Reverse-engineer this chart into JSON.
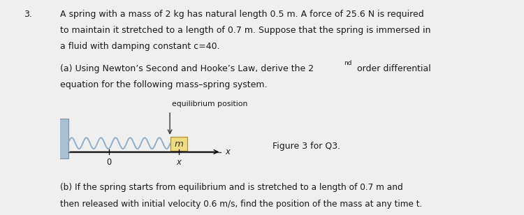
{
  "question_number": "3.",
  "main_text_line1": "A spring with a mass of 2 kg has natural length 0.5 m. A force of 25.6 N is required",
  "main_text_line2": "to maintain it stretched to a length of 0.7 m. Suppose that the spring is immersed in",
  "main_text_line3": "a fluid with damping constant c=40.",
  "part_a_line1": "(a) Using Newton’s Second and Hooke’s Law, derive the 2",
  "part_a_superscript": "nd",
  "part_a_line1b": " order differential",
  "part_a_line2": "equation for the following mass–spring system.",
  "equilibrium_label": "equilibrium position",
  "mass_label": "m",
  "axis_label_0": "0",
  "axis_label_x_italic": "x",
  "axis_label_X_italic": "x",
  "figure_caption": "Figure 3 for Q3.",
  "part_b_line1": "(b) If the spring starts from equilibrium and is stretched to a length of 0.7 m and",
  "part_b_line2": "then released with initial velocity 0.6 m/s, find the position of the mass at any time t.",
  "bg_color": "#efefef",
  "wall_color_face": "#a8c0d4",
  "wall_color_edge": "#8090a0",
  "spring_color": "#90aec8",
  "mass_face": "#f0dc80",
  "mass_edge": "#b09030",
  "text_color": "#1a1a1a",
  "axis_line_color": "#404040",
  "font_size_main": 9.0,
  "font_size_diagram": 7.8
}
